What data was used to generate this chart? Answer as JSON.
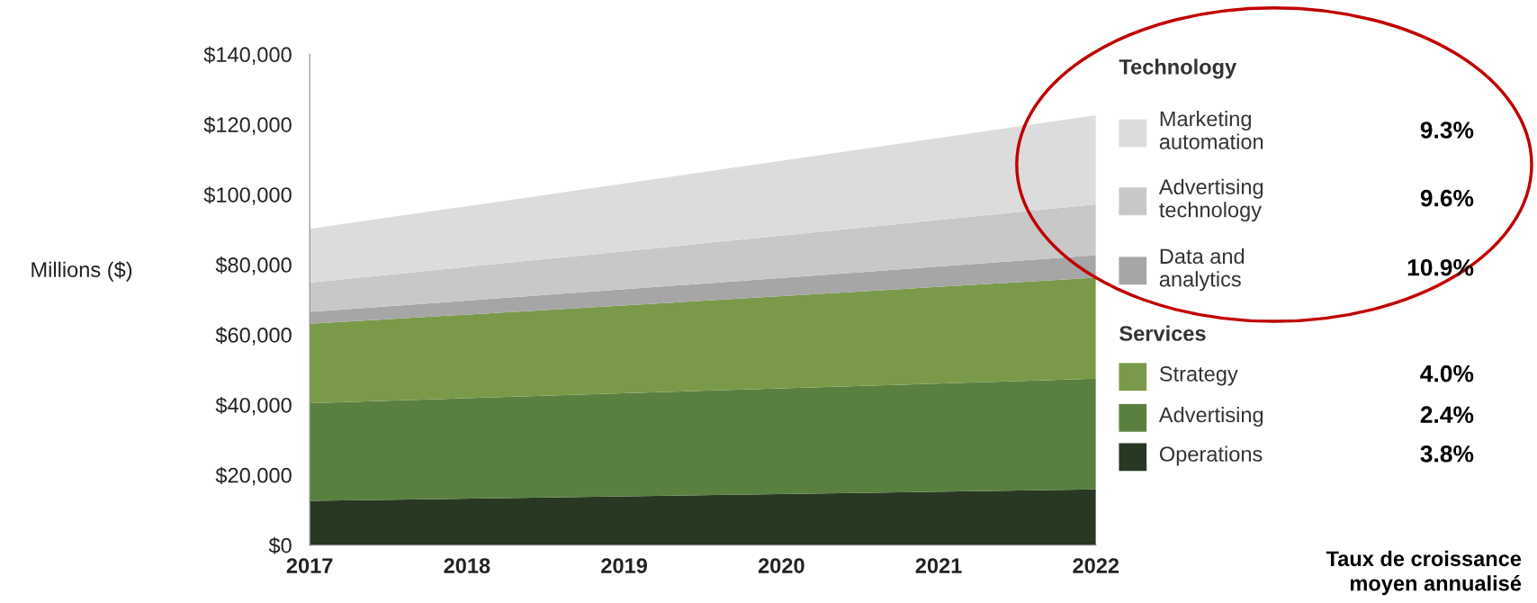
{
  "chart_data": {
    "type": "area",
    "stacked": true,
    "ylabel": "Millions ($)",
    "x": [
      2017,
      2022
    ],
    "xlim": [
      2017,
      2022
    ],
    "xticks": [
      2017,
      2018,
      2019,
      2020,
      2021,
      2022
    ],
    "ylim": [
      0,
      140000
    ],
    "yticks": [
      {
        "value": 0,
        "label": "$0"
      },
      {
        "value": 20000,
        "label": "$20,000"
      },
      {
        "value": 40000,
        "label": "$40,000"
      },
      {
        "value": 60000,
        "label": "$60,000"
      },
      {
        "value": 80000,
        "label": "$80,000"
      },
      {
        "value": 100000,
        "label": "$100,000"
      },
      {
        "value": 120000,
        "label": "$120,000"
      },
      {
        "value": 140000,
        "label": "$140,000"
      }
    ],
    "grid": false,
    "legend": "right",
    "series": [
      {
        "name": "Operations",
        "color": "#283823",
        "values": [
          12600,
          15900
        ]
      },
      {
        "name": "Advertising",
        "color": "#5a8040",
        "values": [
          27900,
          31600
        ]
      },
      {
        "name": "Strategy",
        "color": "#7a9a4a",
        "values": [
          22600,
          28800
        ]
      },
      {
        "name": "Data and\nanalytics",
        "color": "#a6a6a6",
        "values": [
          3400,
          6400
        ]
      },
      {
        "name": "Advertising\ntechnology",
        "color": "#c8c8c8",
        "values": [
          8400,
          14500
        ]
      },
      {
        "name": "Marketing\nautomation",
        "color": "#dcdcdc",
        "values": [
          15300,
          25400
        ]
      }
    ],
    "annotations": [
      "Technology",
      "9.3%",
      "9.6%",
      "10.9%",
      "Services",
      "4.0%",
      "2.4%",
      "3.8%",
      "Taux de croissance\nmoyen annualisé"
    ]
  }
}
